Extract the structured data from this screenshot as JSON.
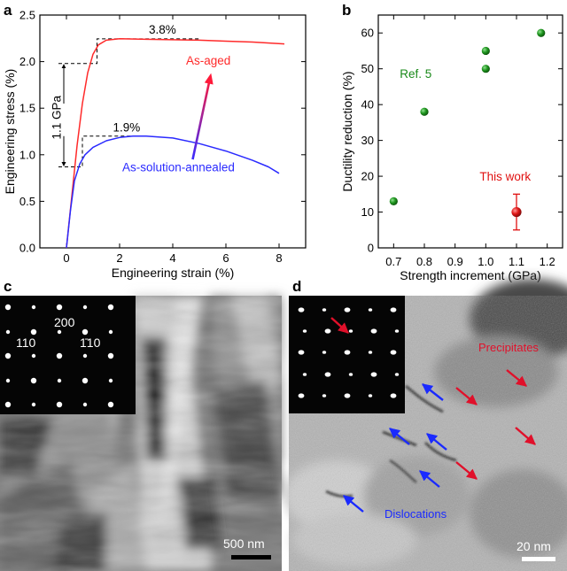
{
  "panels": {
    "a": {
      "label": "a",
      "chart_data": {
        "type": "line",
        "xlabel": "Engineering strain (%)",
        "ylabel": "Engineering stress (%)",
        "xlim": [
          -1,
          9
        ],
        "ylim": [
          0,
          2.5
        ],
        "xticks": [
          0,
          2,
          4,
          6,
          8
        ],
        "yticks": [
          0.0,
          0.5,
          1.0,
          1.5,
          2.0,
          2.5
        ],
        "grid": false,
        "series": [
          {
            "name": "As-aged",
            "color": "#ff2a2a",
            "x": [
              0,
              0.2,
              0.4,
              0.6,
              0.8,
              1.0,
              1.2,
              1.5,
              2.0,
              3.0,
              4.0,
              5.0,
              6.0,
              7.0,
              8.2
            ],
            "y": [
              0,
              0.55,
              1.1,
              1.55,
              1.88,
              2.08,
              2.18,
              2.23,
              2.245,
              2.24,
              2.235,
              2.23,
              2.22,
              2.21,
              2.19
            ]
          },
          {
            "name": "As-solution-annealed",
            "color": "#2a2aff",
            "x": [
              0,
              0.15,
              0.3,
              0.5,
              0.7,
              1.0,
              1.5,
              2.0,
              2.5,
              3.0,
              4.0,
              5.0,
              6.0,
              7.0,
              7.6,
              8.0
            ],
            "y": [
              0,
              0.4,
              0.72,
              0.9,
              1.0,
              1.08,
              1.15,
              1.185,
              1.2,
              1.2,
              1.18,
              1.12,
              1.04,
              0.94,
              0.87,
              0.8
            ]
          }
        ],
        "annotations": [
          {
            "text": "3.8%",
            "x": 3.1,
            "y": 2.3
          },
          {
            "text": "1.9%",
            "x": 1.75,
            "y": 1.25
          },
          {
            "text": "1.1 GPa",
            "x": 0.05,
            "y": 1.4
          }
        ]
      }
    },
    "b": {
      "label": "b",
      "chart_data": {
        "type": "scatter",
        "xlabel": "Strength increment (GPa)",
        "ylabel": "Ductility reduction (%)",
        "xlim": [
          0.65,
          1.25
        ],
        "ylim": [
          0,
          65
        ],
        "xticks": [
          0.7,
          0.8,
          0.9,
          1.0,
          1.1,
          1.2
        ],
        "yticks": [
          0,
          10,
          20,
          30,
          40,
          50,
          60
        ],
        "grid": false,
        "series": [
          {
            "name": "Ref. 5",
            "color": "#1a8a1a",
            "x": [
              0.7,
              0.8,
              1.0,
              1.0,
              1.18
            ],
            "y": [
              13,
              38,
              55,
              50,
              60
            ]
          },
          {
            "name": "This work",
            "color": "#e01010",
            "x": [
              1.1
            ],
            "y": [
              10
            ],
            "yerr": [
              5
            ]
          }
        ]
      }
    },
    "c": {
      "label": "c",
      "diffraction_labels": [
        "200",
        "110",
        "1̄10"
      ],
      "scale_bar": "500 nm"
    },
    "d": {
      "label": "d",
      "annotations": {
        "precipitates": "Precipitates",
        "dislocations": "Dislocations"
      },
      "colors": {
        "precipitates": "#e0102a",
        "dislocations": "#1a2aff"
      },
      "scale_bar": "20 nm"
    }
  }
}
